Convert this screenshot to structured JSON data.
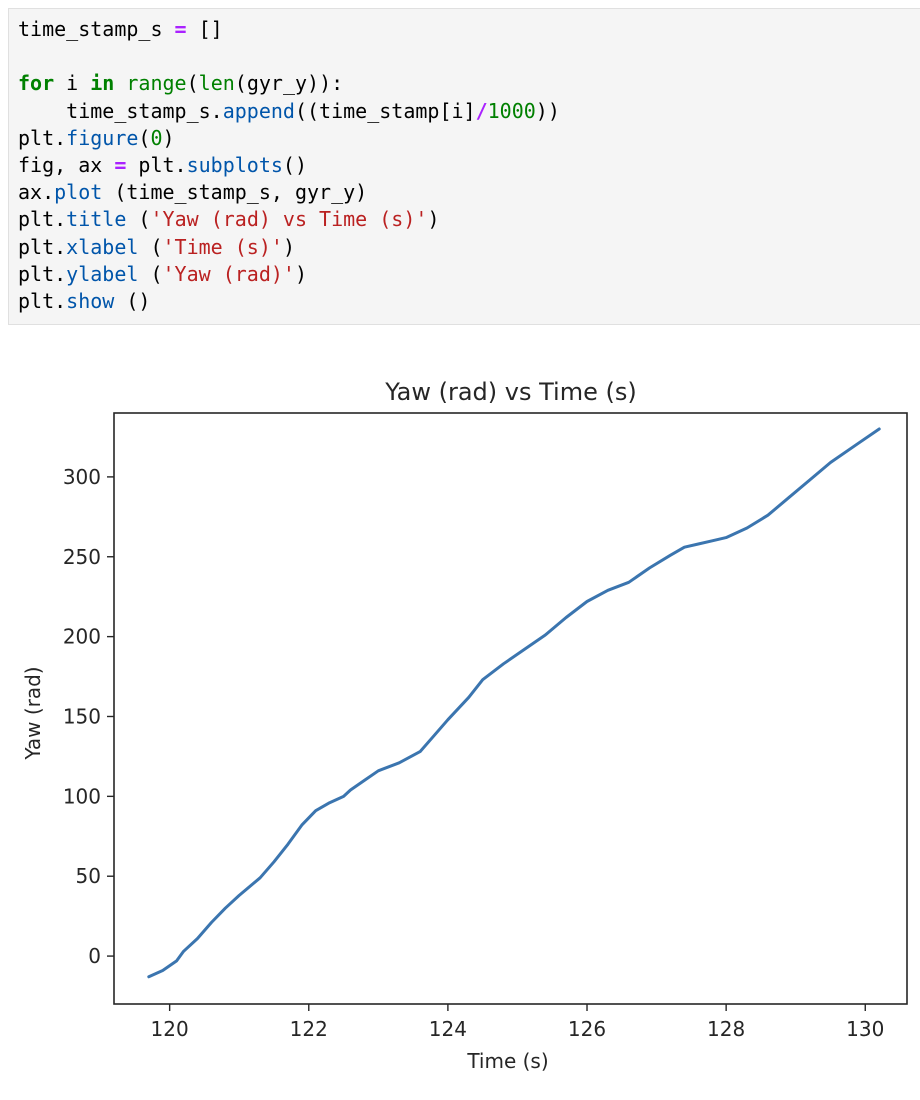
{
  "code_cell": {
    "lines": [
      [
        [
          "time_stamp_s ",
          "name"
        ],
        [
          "=",
          "op"
        ],
        [
          " []",
          "name"
        ]
      ],
      [],
      [
        [
          "for",
          "kw"
        ],
        [
          " i ",
          "name"
        ],
        [
          "in",
          "kw"
        ],
        [
          " ",
          "name"
        ],
        [
          "range",
          "num"
        ],
        [
          "(",
          "name"
        ],
        [
          "len",
          "num"
        ],
        [
          "(gyr_y)):",
          "name"
        ]
      ],
      [
        [
          "    time_stamp_s.",
          "name"
        ],
        [
          "append",
          "fn"
        ],
        [
          "((time_stamp[i]",
          "name"
        ],
        [
          "/",
          "op"
        ],
        [
          "1000",
          "num"
        ],
        [
          "))",
          "name"
        ]
      ],
      [
        [
          "plt.",
          "name"
        ],
        [
          "figure",
          "fn"
        ],
        [
          "(",
          "name"
        ],
        [
          "0",
          "num"
        ],
        [
          ")",
          "name"
        ]
      ],
      [
        [
          "fig, ax ",
          "name"
        ],
        [
          "=",
          "op"
        ],
        [
          " plt.",
          "name"
        ],
        [
          "subplots",
          "fn"
        ],
        [
          "()",
          "name"
        ]
      ],
      [
        [
          "ax.",
          "name"
        ],
        [
          "plot",
          "fn"
        ],
        [
          " (time_stamp_s, gyr_y)",
          "name"
        ]
      ],
      [
        [
          "plt.",
          "name"
        ],
        [
          "title",
          "fn"
        ],
        [
          " (",
          "name"
        ],
        [
          "'Yaw (rad) vs Time (s)'",
          "str"
        ],
        [
          ")",
          "name"
        ]
      ],
      [
        [
          "plt.",
          "name"
        ],
        [
          "xlabel",
          "fn"
        ],
        [
          " (",
          "name"
        ],
        [
          "'Time (s)'",
          "str"
        ],
        [
          ")",
          "name"
        ]
      ],
      [
        [
          "plt.",
          "name"
        ],
        [
          "ylabel",
          "fn"
        ],
        [
          " (",
          "name"
        ],
        [
          "'Yaw (rad)'",
          "str"
        ],
        [
          ")",
          "name"
        ]
      ],
      [
        [
          "plt.",
          "name"
        ],
        [
          "show",
          "fn"
        ],
        [
          " ()",
          "name"
        ]
      ]
    ]
  },
  "colors": {
    "code_bg": "#f5f5f5",
    "keyword": "#008000",
    "operator": "#aa22ff",
    "function": "#0055aa",
    "string": "#ba2121",
    "line": "#3b75af"
  },
  "chart_data": {
    "type": "line",
    "title": "Yaw (rad) vs Time (s)",
    "xlabel": "Time (s)",
    "ylabel": "Yaw (rad)",
    "xlim": [
      119.2,
      130.6
    ],
    "ylim": [
      -30,
      340
    ],
    "xticks": [
      120,
      122,
      124,
      126,
      128,
      130
    ],
    "yticks": [
      0,
      50,
      100,
      150,
      200,
      250,
      300
    ],
    "grid": false,
    "series": [
      {
        "color": "#3b75af",
        "x": [
          119.7,
          119.9,
          120.1,
          120.2,
          120.4,
          120.6,
          120.8,
          121.0,
          121.3,
          121.5,
          121.7,
          121.9,
          122.1,
          122.3,
          122.5,
          122.6,
          122.8,
          123.0,
          123.3,
          123.6,
          123.8,
          124.0,
          124.3,
          124.5,
          124.8,
          125.1,
          125.4,
          125.7,
          126.0,
          126.3,
          126.6,
          126.9,
          127.2,
          127.4,
          127.6,
          127.8,
          128.0,
          128.3,
          128.6,
          128.9,
          129.2,
          129.5,
          129.9,
          130.2
        ],
        "y": [
          -13,
          -9,
          -3,
          3,
          11,
          21,
          30,
          38,
          49,
          59,
          70,
          82,
          91,
          96,
          100,
          104,
          110,
          116,
          121,
          128,
          138,
          148,
          162,
          173,
          183,
          192,
          201,
          212,
          222,
          229,
          234,
          243,
          251,
          256,
          258,
          260,
          262,
          268,
          276,
          287,
          298,
          309,
          321,
          330
        ]
      }
    ]
  }
}
